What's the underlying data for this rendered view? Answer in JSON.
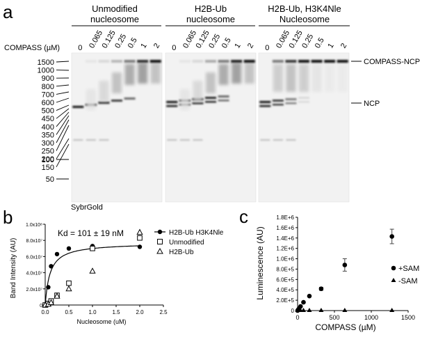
{
  "panel_a": {
    "letter": "a",
    "groups": [
      {
        "line1": "Unmodified",
        "line2": "nucleosome"
      },
      {
        "line1": "H2B-Ub",
        "line2": "nucleosome"
      },
      {
        "line1": "H2B-Ub, H3K4Nle",
        "line2": "Nucleosome"
      }
    ],
    "compass_label": "COMPASS (µM)",
    "lane_labels": [
      "0",
      "0.065",
      "0.125",
      "0.25",
      "0.5",
      "1",
      "2"
    ],
    "ladder": [
      "1500",
      "1000",
      "900",
      "800",
      "700",
      "600",
      "500",
      "450",
      "400",
      "350",
      "300",
      "250",
      "200",
      "150",
      "100",
      "50"
    ],
    "band_labels": {
      "complex": "COMPASS-NCP",
      "free": "NCP"
    },
    "stain": "SybrGold"
  },
  "panel_b": {
    "letter": "b",
    "kd_text": "Kd = 101 ± 19 nM",
    "chart_data": {
      "type": "scatter",
      "xlabel": "Nucleosome (uM)",
      "ylabel": "Band Intensity (AU)",
      "xlim": [
        0,
        2.5
      ],
      "ylim": [
        0,
        100000000
      ],
      "xticks": [
        "0.0",
        "0.5",
        "1.0",
        "1.5",
        "2.0",
        "2.5"
      ],
      "yticks": [
        "0",
        "2.0x10⁷",
        "4.0x10⁷",
        "6.0x10⁷",
        "8.0x10⁷",
        "1.0x10⁸"
      ],
      "legend_position": "top-right",
      "series": [
        {
          "name": "H2B-Ub H3K4Nle",
          "marker": "filled-circle",
          "x": [
            0,
            0.065,
            0.125,
            0.25,
            0.5,
            1.0,
            2.0
          ],
          "y": [
            0,
            22000000,
            48000000,
            63000000,
            70000000,
            73000000,
            72000000
          ]
        },
        {
          "name": "Unmodified",
          "marker": "open-square",
          "x": [
            0,
            0.065,
            0.125,
            0.25,
            0.5,
            1.0,
            2.0
          ],
          "y": [
            0,
            2000000,
            5000000,
            12000000,
            27000000,
            70000000,
            83000000
          ]
        },
        {
          "name": "H2B-Ub",
          "marker": "open-triangle",
          "x": [
            0,
            0.065,
            0.125,
            0.25,
            0.5,
            1.0,
            2.0
          ],
          "y": [
            0,
            1000000,
            3000000,
            11000000,
            20000000,
            42000000,
            90000000
          ]
        }
      ],
      "fit": {
        "vmax": 77000000,
        "kd": 0.101
      }
    }
  },
  "panel_c": {
    "letter": "c",
    "chart_data": {
      "type": "scatter",
      "xlabel": "COMPASS (µM)",
      "ylabel": "Luminescence (AU)",
      "xlim": [
        0,
        1500
      ],
      "ylim": [
        0,
        1800000
      ],
      "xticks": [
        "0",
        "500",
        "1000",
        "1500"
      ],
      "yticks": [
        "0",
        "2.0E+5",
        "4.0E+5",
        "6.0E+5",
        "8.0E+5",
        "1.0E+6",
        "1.2E+6",
        "1.4E+6",
        "1.6E+6",
        "1.8E+6"
      ],
      "legend_position": "right",
      "series": [
        {
          "name": "+SAM",
          "marker": "filled-circle",
          "x": [
            0,
            10,
            20,
            40,
            80,
            160,
            320,
            640,
            1280
          ],
          "y": [
            0,
            20000,
            40000,
            80000,
            160000,
            280000,
            420000,
            880000,
            1430000
          ],
          "err": [
            0,
            0,
            0,
            0,
            0,
            0,
            30000,
            120000,
            140000
          ]
        },
        {
          "name": "-SAM",
          "marker": "filled-triangle",
          "x": [
            0,
            10,
            20,
            40,
            80,
            160,
            320,
            640,
            1280
          ],
          "y": [
            0,
            0,
            0,
            0,
            0,
            0,
            0,
            0,
            0
          ]
        }
      ]
    }
  }
}
